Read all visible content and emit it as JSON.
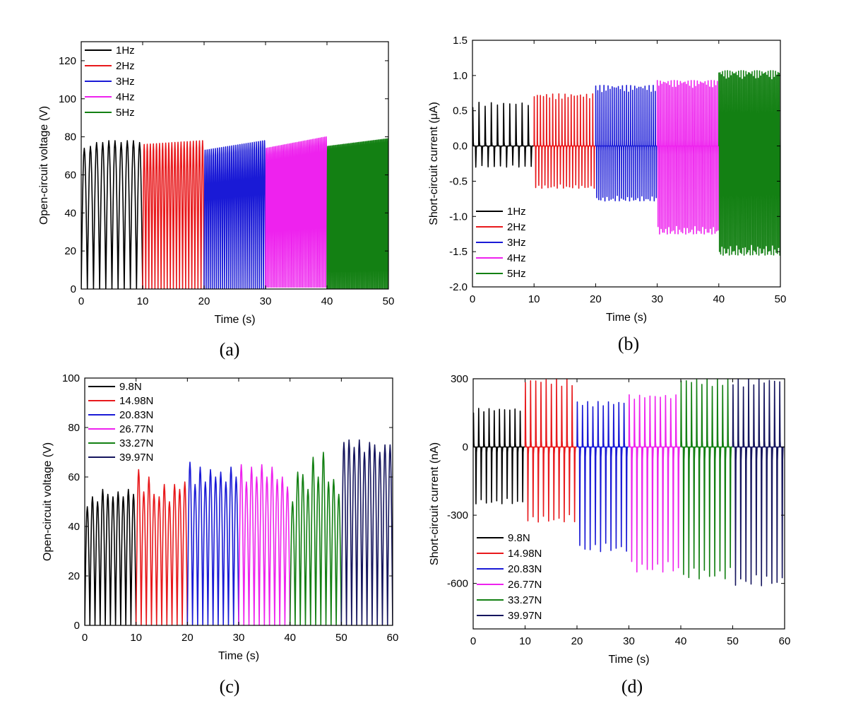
{
  "chart_data": [
    {
      "id": "a",
      "type": "line",
      "caption": "(a)",
      "xlabel": "Time (s)",
      "ylabel": "Open-circuit voltage (V)",
      "xlim": [
        0,
        50
      ],
      "ylim": [
        0,
        130
      ],
      "xticks": [
        0,
        10,
        20,
        30,
        40,
        50
      ],
      "yticks": [
        0,
        20,
        40,
        60,
        80,
        100,
        120
      ],
      "legend_position": "top-left",
      "series": [
        {
          "name": "1Hz",
          "color": "#000000",
          "t_start": 0,
          "t_end": 10,
          "freq": 1,
          "peaks": [
            74,
            75,
            77,
            77,
            78,
            78,
            77,
            78,
            78,
            77
          ],
          "trough": 0
        },
        {
          "name": "2Hz",
          "color": "#e8191c",
          "t_start": 10,
          "t_end": 20,
          "freq": 2,
          "peak_start": 76,
          "peak_end": 78,
          "trough": 0
        },
        {
          "name": "3Hz",
          "color": "#1a1ad6",
          "t_start": 20,
          "t_end": 30,
          "freq": 3,
          "peak_start": 73,
          "peak_end": 78,
          "trough": 0
        },
        {
          "name": "4Hz",
          "color": "#ee22ee",
          "t_start": 30,
          "t_end": 40,
          "freq": 4,
          "peak_start": 74,
          "peak_end": 80,
          "trough": 1
        },
        {
          "name": "5Hz",
          "color": "#138013",
          "t_start": 40,
          "t_end": 50,
          "freq": 5,
          "peak_start": 75,
          "peak_end": 79,
          "trough": 0
        }
      ]
    },
    {
      "id": "b",
      "type": "line",
      "caption": "(b)",
      "xlabel": "Time (s)",
      "ylabel": "Short-circuit current (μA)",
      "xlim": [
        0,
        50
      ],
      "ylim": [
        -2.0,
        1.5
      ],
      "xticks": [
        0,
        10,
        20,
        30,
        40,
        50
      ],
      "yticks": [
        -2.0,
        -1.5,
        -1.0,
        -0.5,
        0.0,
        0.5,
        1.0,
        1.5
      ],
      "legend_position": "bottom-left",
      "series": [
        {
          "name": "1Hz",
          "color": "#000000",
          "t_start": 0,
          "t_end": 10,
          "freq": 1,
          "max": 0.62,
          "min": -0.3
        },
        {
          "name": "2Hz",
          "color": "#e8191c",
          "t_start": 10,
          "t_end": 20,
          "freq": 2,
          "max": 0.74,
          "min": -0.6
        },
        {
          "name": "3Hz",
          "color": "#1a1ad6",
          "t_start": 20,
          "t_end": 30,
          "freq": 3,
          "max": 0.86,
          "min": -0.78
        },
        {
          "name": "4Hz",
          "color": "#ee22ee",
          "t_start": 30,
          "t_end": 40,
          "freq": 4,
          "max": 0.93,
          "min": -1.25
        },
        {
          "name": "5Hz",
          "color": "#138013",
          "t_start": 40,
          "t_end": 50,
          "freq": 5,
          "max": 1.07,
          "min": -1.55
        }
      ]
    },
    {
      "id": "c",
      "type": "line",
      "caption": "(c)",
      "xlabel": "Time (s)",
      "ylabel": "Open-circuit voltage (V)",
      "xlim": [
        0,
        60
      ],
      "ylim": [
        0,
        100
      ],
      "xticks": [
        0,
        10,
        20,
        30,
        40,
        50,
        60
      ],
      "yticks": [
        0,
        20,
        40,
        60,
        80,
        100
      ],
      "legend_position": "top-left",
      "series": [
        {
          "name": "9.8N",
          "color": "#000000",
          "t_start": 0,
          "t_end": 10,
          "cycles": 10,
          "peaks": [
            48,
            52,
            50,
            55,
            53,
            52,
            54,
            52,
            55,
            53
          ]
        },
        {
          "name": "14.98N",
          "color": "#e8191c",
          "t_start": 10,
          "t_end": 20,
          "cycles": 10,
          "peaks": [
            63,
            54,
            60,
            53,
            52,
            57,
            50,
            57,
            55,
            58
          ]
        },
        {
          "name": "20.83N",
          "color": "#1a1ad6",
          "t_start": 20,
          "t_end": 30,
          "cycles": 10,
          "peaks": [
            66,
            57,
            64,
            58,
            63,
            60,
            62,
            58,
            64,
            60
          ]
        },
        {
          "name": "26.77N",
          "color": "#ee22ee",
          "t_start": 30,
          "t_end": 40,
          "cycles": 10,
          "peaks": [
            65,
            58,
            64,
            60,
            65,
            60,
            64,
            59,
            60,
            56
          ]
        },
        {
          "name": "33.27N",
          "color": "#138013",
          "t_start": 40,
          "t_end": 50,
          "cycles": 10,
          "peaks": [
            50,
            62,
            61,
            55,
            68,
            60,
            70,
            58,
            59,
            53
          ]
        },
        {
          "name": "39.97N",
          "color": "#15155e",
          "t_start": 50,
          "t_end": 60,
          "cycles": 10,
          "peaks": [
            74,
            75,
            72,
            75,
            70,
            74,
            73,
            70,
            73,
            73
          ]
        }
      ]
    },
    {
      "id": "d",
      "type": "line",
      "caption": "(d)",
      "xlabel": "Time (s)",
      "ylabel": "Short-circuit current (nA)",
      "xlim": [
        0,
        60
      ],
      "ylim": [
        -800,
        300
      ],
      "xticks": [
        0,
        10,
        20,
        30,
        40,
        50,
        60
      ],
      "yticks": [
        -600,
        -300,
        0,
        300
      ],
      "legend_position": "bottom-left",
      "series": [
        {
          "name": "9.8N",
          "color": "#000000",
          "t_start": 0,
          "t_end": 10,
          "cycles": 10,
          "max": 170,
          "min": -250
        },
        {
          "name": "14.98N",
          "color": "#e8191c",
          "t_start": 10,
          "t_end": 20,
          "cycles": 10,
          "max": 300,
          "min": -330
        },
        {
          "name": "20.83N",
          "color": "#1a1ad6",
          "t_start": 20,
          "t_end": 30,
          "cycles": 10,
          "max": 200,
          "min": -460
        },
        {
          "name": "26.77N",
          "color": "#ee22ee",
          "t_start": 30,
          "t_end": 40,
          "cycles": 10,
          "max": 230,
          "min": -550
        },
        {
          "name": "33.27N",
          "color": "#138013",
          "t_start": 40,
          "t_end": 50,
          "cycles": 10,
          "max": 300,
          "min": -580
        },
        {
          "name": "39.97N",
          "color": "#15155e",
          "t_start": 50,
          "t_end": 60,
          "cycles": 10,
          "max": 300,
          "min": -610
        }
      ]
    }
  ]
}
